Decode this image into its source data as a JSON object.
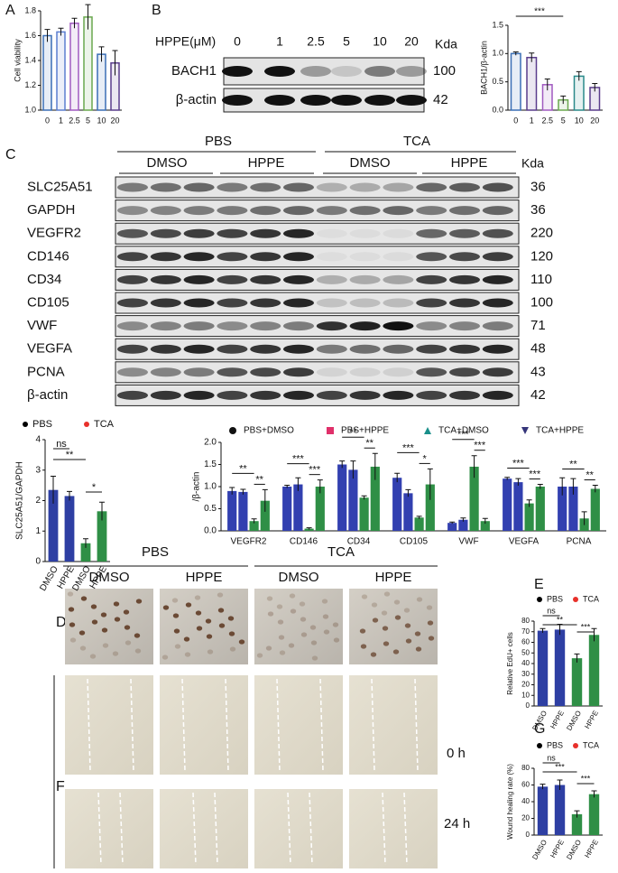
{
  "panel_labels": [
    "A",
    "B",
    "C",
    "D",
    "E",
    "F",
    "G"
  ],
  "blot_b": {
    "header": "HPPE(μM)",
    "lanes": [
      0,
      1,
      2.5,
      5,
      10,
      20
    ],
    "unit": "Kda",
    "rows": [
      {
        "name": "BACH1",
        "kda": 100
      },
      {
        "name": "β-actin",
        "kda": 42
      }
    ]
  },
  "blot_c": {
    "treatments": [
      "PBS",
      "TCA"
    ],
    "groups": [
      "DMSO",
      "HPPE",
      "DMSO",
      "HPPE"
    ],
    "unit": "Kda",
    "rows": [
      {
        "name": "SLC25A51",
        "kda": 36
      },
      {
        "name": "GAPDH",
        "kda": 36
      },
      {
        "name": "VEGFR2",
        "kda": 220
      },
      {
        "name": "CD146",
        "kda": 120
      },
      {
        "name": "CD34",
        "kda": 110
      },
      {
        "name": "CD105",
        "kda": 100
      },
      {
        "name": "VWF",
        "kda": 71
      },
      {
        "name": "VEGFA",
        "kda": 48
      },
      {
        "name": "PCNA",
        "kda": 43
      },
      {
        "name": "β-actin",
        "kda": 42
      }
    ]
  },
  "images": {
    "treatments": [
      "PBS",
      "TCA"
    ],
    "groups": [
      "DMSO",
      "HPPE",
      "DMSO",
      "HPPE"
    ],
    "times": [
      "0 h",
      "24 h"
    ]
  },
  "chart_data": [
    {
      "type": "bar",
      "y_label": "Cell viability",
      "fill": "outline",
      "categories": [
        "0",
        "1",
        "2.5",
        "5",
        "10",
        "20"
      ],
      "values": [
        1.6,
        1.63,
        1.7,
        1.75,
        1.45,
        1.38
      ],
      "errors": [
        0.05,
        0.03,
        0.04,
        0.1,
        0.06,
        0.1
      ],
      "colors": [
        "#3a6fb5",
        "#5b7fd0",
        "#a05ac0",
        "#6aa84f",
        "#3a6fb5",
        "#5a3d8c"
      ],
      "ylim": [
        1.0,
        1.8
      ],
      "yticks": [
        {
          "value": 1,
          "label": "1.0"
        },
        1.2,
        1.4,
        1.6,
        1.8
      ]
    },
    {
      "type": "bar",
      "y_label": "BACH1/β-actin",
      "fill": "outline",
      "categories": [
        "0",
        "1",
        "2.5",
        "5",
        "10",
        "20"
      ],
      "values": [
        1.0,
        0.93,
        0.45,
        0.18,
        0.6,
        0.4
      ],
      "errors": [
        0.03,
        0.08,
        0.1,
        0.07,
        0.08,
        0.07
      ],
      "colors": [
        "#3a6fb5",
        "#5a3d8c",
        "#a05ac0",
        "#6aa84f",
        "#2a8a8a",
        "#5a3d8c"
      ],
      "ylim": [
        0,
        1.5
      ],
      "yticks": [
        {
          "value": 0,
          "label": "0.0"
        },
        0.5,
        {
          "value": 1,
          "label": "1.0"
        },
        1.5
      ],
      "annotations": [
        "***"
      ]
    },
    {
      "type": "bar",
      "y_label": "SLC25A51/GAPDH",
      "fill": "solid",
      "categories": [
        "DMSO",
        "HPPE",
        "DMSO",
        "HPPE"
      ],
      "values": [
        2.35,
        2.15,
        0.6,
        1.65
      ],
      "errors": [
        0.45,
        0.15,
        0.15,
        0.3
      ],
      "colors": [
        "#2e3fa3",
        "#2e3fa3",
        "#2f8f46",
        "#2f8f46"
      ],
      "ylim": [
        0,
        4
      ],
      "yticks": [
        0,
        1,
        2,
        3,
        4
      ],
      "legend": [
        {
          "label": "PBS",
          "color": "#000000"
        },
        {
          "label": "TCA",
          "color": "#e8302a"
        }
      ],
      "annotations": [
        "ns",
        "**",
        "*"
      ]
    },
    {
      "type": "bar",
      "y_label": "/β-actin",
      "fill": "solid",
      "categories": [
        "VEGFR2",
        "CD146",
        "CD34",
        "CD105",
        "VWF",
        "VEGFA",
        "PCNA"
      ],
      "series": [
        {
          "name": "PBS+DMSO",
          "color": "#3240b0",
          "marker_color": "#111111",
          "marker": "circle",
          "values": [
            0.9,
            1.0,
            1.5,
            1.2,
            0.18,
            1.18,
            1.0
          ],
          "errors": [
            0.08,
            0.03,
            0.08,
            0.1,
            0.02,
            0.03,
            0.2
          ]
        },
        {
          "name": "PBS+HPPE",
          "color": "#3240b0",
          "marker_color": "#e0306a",
          "marker": "square",
          "values": [
            0.88,
            1.05,
            1.38,
            0.85,
            0.25,
            1.1,
            1.0
          ],
          "errors": [
            0.06,
            0.15,
            0.2,
            0.08,
            0.04,
            0.08,
            0.18
          ]
        },
        {
          "name": "TCA+DMSO",
          "color": "#2f8f46",
          "marker_color": "#1a8f8a",
          "marker": "triangle",
          "values": [
            0.22,
            0.05,
            0.75,
            0.3,
            1.45,
            0.62,
            0.28
          ],
          "errors": [
            0.05,
            0.02,
            0.04,
            0.03,
            0.25,
            0.08,
            0.15
          ]
        },
        {
          "name": "TCA+HPPE",
          "color": "#2f8f46",
          "marker_color": "#35357a",
          "marker": "triangle-down",
          "values": [
            0.68,
            1.0,
            1.45,
            1.05,
            0.22,
            1.0,
            0.95
          ],
          "errors": [
            0.25,
            0.15,
            0.3,
            0.35,
            0.06,
            0.05,
            0.08
          ]
        }
      ],
      "ylim": [
        0,
        2.0
      ],
      "yticks": [
        {
          "value": 0,
          "label": "0.0"
        },
        0.5,
        {
          "value": 1,
          "label": "1.0"
        },
        1.5,
        {
          "value": 2,
          "label": "2.0"
        }
      ],
      "annotations": [
        "**",
        "**",
        "***",
        "***",
        "**",
        "**",
        "***",
        "*",
        "***",
        "***",
        "***",
        "***",
        "**",
        "**"
      ]
    },
    {
      "type": "bar",
      "y_label": "Relative EdU+ cells",
      "fill": "solid",
      "categories": [
        "DMSO",
        "HPPE",
        "DMSO",
        "HPPE"
      ],
      "values": [
        71,
        72,
        45,
        67
      ],
      "errors": [
        2,
        5,
        4,
        6
      ],
      "colors": [
        "#2e3fa3",
        "#2e3fa3",
        "#2f8f46",
        "#2f8f46"
      ],
      "ylim": [
        0,
        80
      ],
      "yticks": [
        0,
        10,
        20,
        30,
        40,
        50,
        60,
        70,
        80
      ],
      "legend": [
        {
          "label": "PBS",
          "color": "#000000"
        },
        {
          "label": "TCA",
          "color": "#e8302a"
        }
      ],
      "annotations": [
        "ns",
        "**",
        "***"
      ]
    },
    {
      "type": "bar",
      "y_label": "Wound healing rate (%)",
      "fill": "solid",
      "categories": [
        "DMSO",
        "HPPE",
        "DMSO",
        "HPPE"
      ],
      "values": [
        58,
        60,
        25,
        49
      ],
      "errors": [
        3,
        6,
        4,
        4
      ],
      "colors": [
        "#2e3fa3",
        "#2e3fa3",
        "#2f8f46",
        "#2f8f46"
      ],
      "ylim": [
        0,
        80
      ],
      "yticks": [
        0,
        20,
        40,
        60,
        80
      ],
      "legend": [
        {
          "label": "PBS",
          "color": "#000000"
        },
        {
          "label": "TCA",
          "color": "#e8302a"
        }
      ],
      "annotations": [
        "ns",
        "***",
        "***"
      ]
    }
  ]
}
